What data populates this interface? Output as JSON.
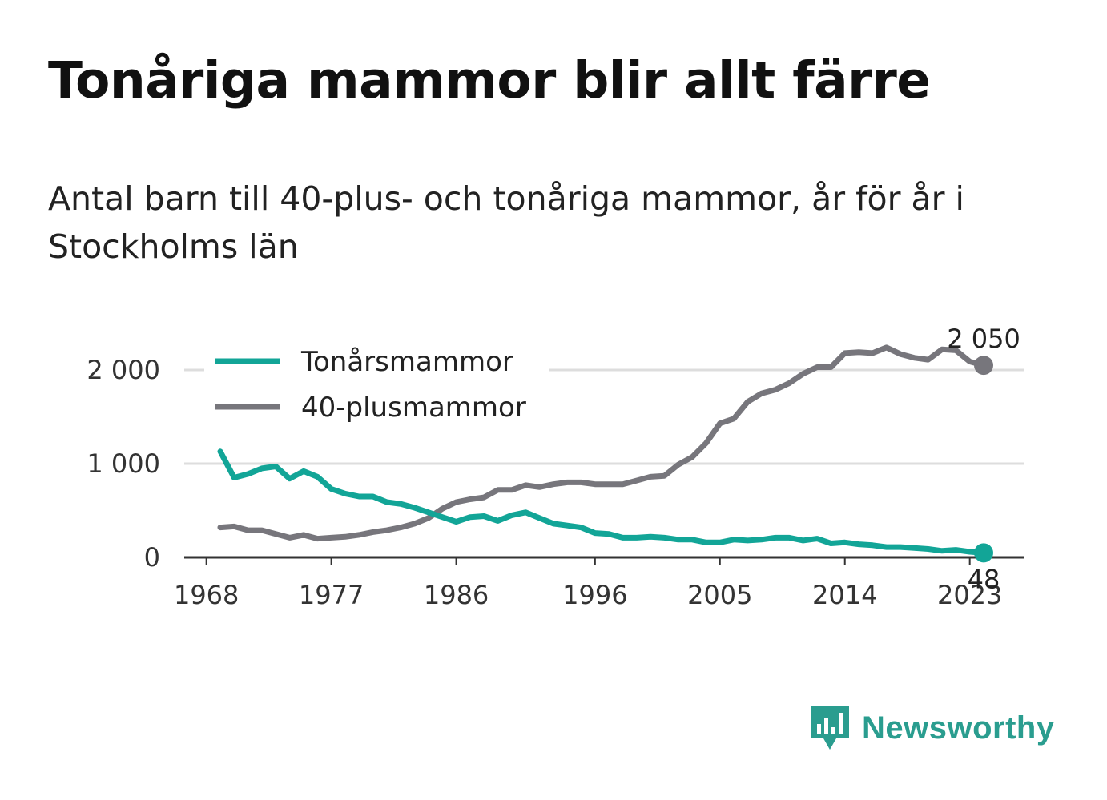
{
  "title": "Tonåriga mammor blir allt färre",
  "subtitle": "Antal barn till 40-plus- och tonåriga mammor, år för år i Stockholms län",
  "brand": {
    "name": "Newsworthy",
    "icon": "newsworthy-logo-icon",
    "color": "#2a9d8f"
  },
  "colors": {
    "teen": "#12a597",
    "forty": "#77767c",
    "grid": "#dddddd",
    "axis": "#333333"
  },
  "chart_data": {
    "type": "line",
    "title": "Tonåriga mammor blir allt färre",
    "subtitle": "Antal barn till 40-plus- och tonåriga mammor, år för år i Stockholms län",
    "xlabel": "",
    "ylabel": "",
    "xlim": [
      1968,
      2025
    ],
    "ylim": [
      0,
      2400
    ],
    "xticks": [
      1968,
      1977,
      1986,
      1996,
      2005,
      2014,
      2023
    ],
    "xtick_labels": [
      "1968",
      "1977",
      "1986",
      "1996",
      "2005",
      "2014",
      "2023"
    ],
    "yticks": [
      0,
      1000,
      2000
    ],
    "ytick_labels": [
      "0",
      "1 000",
      "2 000"
    ],
    "grid": true,
    "legend": "top-left",
    "x": [
      1969,
      1970,
      1971,
      1972,
      1973,
      1974,
      1975,
      1976,
      1977,
      1978,
      1979,
      1980,
      1981,
      1982,
      1983,
      1984,
      1985,
      1986,
      1987,
      1988,
      1989,
      1990,
      1991,
      1992,
      1993,
      1994,
      1995,
      1996,
      1997,
      1998,
      1999,
      2000,
      2001,
      2002,
      2003,
      2004,
      2005,
      2006,
      2007,
      2008,
      2009,
      2010,
      2011,
      2012,
      2013,
      2014,
      2015,
      2016,
      2017,
      2018,
      2019,
      2020,
      2021,
      2022,
      2023,
      2024
    ],
    "series": [
      {
        "name": "Tonårsmammor",
        "color": "#12a597",
        "end_label": "48",
        "values": [
          1130,
          850,
          890,
          950,
          970,
          840,
          920,
          860,
          730,
          680,
          650,
          650,
          590,
          570,
          530,
          480,
          430,
          380,
          430,
          440,
          390,
          450,
          480,
          420,
          360,
          340,
          320,
          260,
          250,
          210,
          210,
          220,
          210,
          190,
          190,
          160,
          160,
          190,
          180,
          190,
          210,
          210,
          180,
          200,
          150,
          160,
          140,
          130,
          110,
          110,
          100,
          90,
          70,
          80,
          60,
          48
        ]
      },
      {
        "name": "40-plusmammor",
        "color": "#77767c",
        "end_label": "2 050",
        "values": [
          320,
          330,
          290,
          290,
          250,
          210,
          240,
          200,
          210,
          220,
          240,
          270,
          290,
          320,
          360,
          420,
          520,
          590,
          620,
          640,
          720,
          720,
          770,
          750,
          780,
          800,
          800,
          780,
          780,
          780,
          820,
          860,
          870,
          990,
          1070,
          1220,
          1430,
          1480,
          1660,
          1750,
          1790,
          1860,
          1960,
          2030,
          2030,
          2180,
          2190,
          2180,
          2240,
          2170,
          2130,
          2110,
          2220,
          2210,
          2090,
          2050
        ]
      }
    ]
  }
}
